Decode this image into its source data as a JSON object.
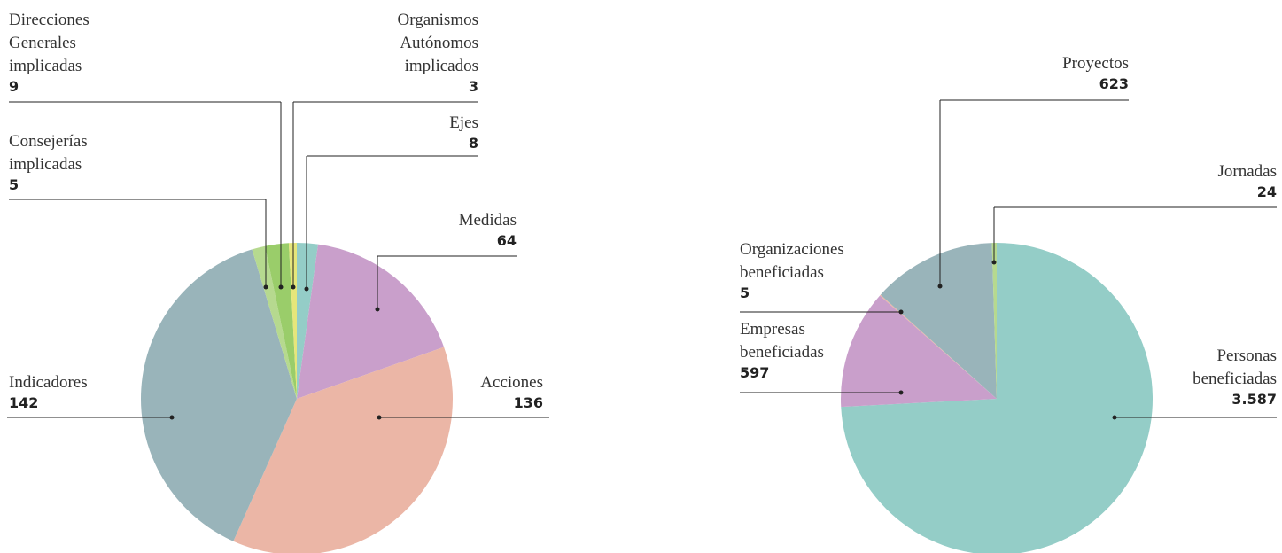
{
  "chart_data": [
    {
      "type": "pie",
      "categories": [
        "Ejes",
        "Medidas",
        "Acciones",
        "Indicadores",
        "Consejerías implicadas",
        "Direcciones Generales implicadas",
        "Organismos Autónomos implicados"
      ],
      "values": [
        8,
        64,
        136,
        142,
        5,
        9,
        3
      ],
      "colors": [
        "#94cdc7",
        "#c99fcb",
        "#ebb6a6",
        "#99b4ba",
        "#b6d98f",
        "#9acd6a",
        "#e6e67a"
      ]
    },
    {
      "type": "pie",
      "categories": [
        "Personas beneficiadas",
        "Empresas beneficiadas",
        "Organizaciones beneficiadas",
        "Proyectos",
        "Jornadas"
      ],
      "values": [
        3587,
        597,
        5,
        623,
        24
      ],
      "value_labels": [
        "3.587",
        "597",
        "5",
        "623",
        "24"
      ],
      "colors": [
        "#94cdc7",
        "#c99fcb",
        "#ebb6a6",
        "#99b4ba",
        "#b6d98f"
      ]
    }
  ]
}
